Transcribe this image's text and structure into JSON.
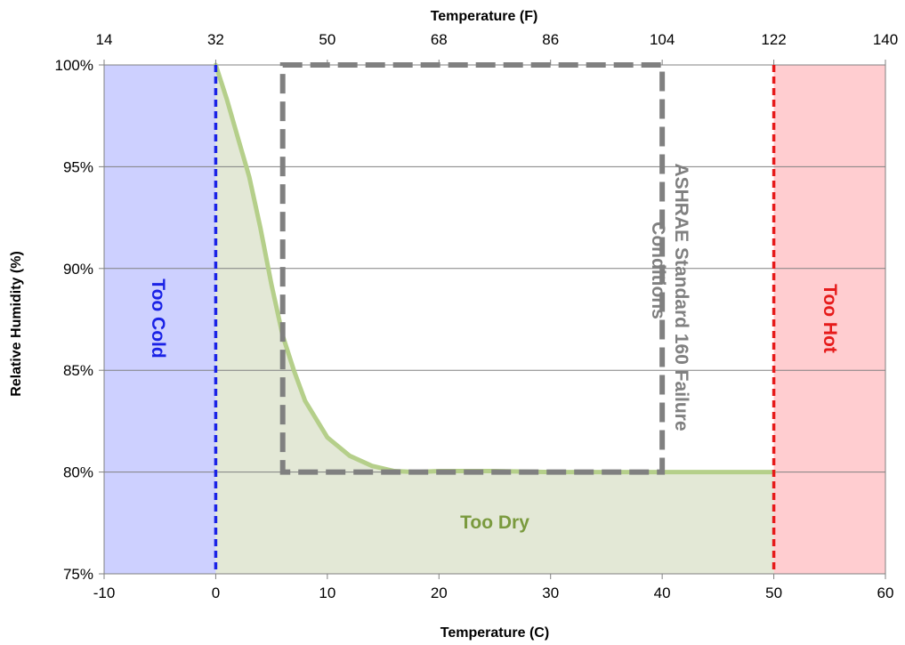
{
  "chart_data": {
    "type": "area",
    "x_axis": {
      "label": "Temperature (C)",
      "range": [
        -10,
        60
      ],
      "ticks": [
        -10,
        0,
        10,
        20,
        30,
        40,
        50,
        60
      ]
    },
    "x2_axis": {
      "label": "Temperature (F)",
      "ticks": [
        14,
        32,
        50,
        68,
        86,
        104,
        122,
        140
      ]
    },
    "y_axis": {
      "label": "Relative Humidity (%)",
      "range": [
        75,
        100
      ],
      "ticks": [
        "75%",
        "80%",
        "85%",
        "90%",
        "95%",
        "100%"
      ]
    },
    "grid": "horizontal",
    "series": [
      {
        "type": "line",
        "color": "#b5cf8a",
        "points": [
          [
            0,
            100
          ],
          [
            1,
            98.3
          ],
          [
            2,
            96.4
          ],
          [
            3,
            94.5
          ],
          [
            4,
            92
          ],
          [
            5,
            89.2
          ],
          [
            6,
            86.7
          ],
          [
            7,
            85
          ],
          [
            8,
            83.5
          ],
          [
            10,
            81.7
          ],
          [
            12,
            80.8
          ],
          [
            14,
            80.3
          ],
          [
            16,
            80.05
          ],
          [
            18,
            80
          ],
          [
            20,
            80.05
          ],
          [
            25,
            80.05
          ],
          [
            30,
            80
          ],
          [
            40,
            80
          ],
          [
            50,
            80
          ]
        ]
      }
    ],
    "regions": [
      {
        "label": "Too Cold",
        "x_range": [
          -10,
          0
        ],
        "y_range": [
          75,
          100
        ],
        "fill": "#cdd0ff",
        "boundary_color": "#1a22e6"
      },
      {
        "label": "Too Hot",
        "x_range": [
          50,
          60
        ],
        "y_range": [
          75,
          100
        ],
        "fill": "#ffcdd0",
        "boundary_color": "#e61a1a"
      },
      {
        "label": "Too Dry",
        "below_curve_x_range": [
          0,
          50
        ],
        "fill": "#e3e8d6",
        "label_color": "#7a9a3e"
      }
    ],
    "annotations": [
      {
        "label": "ASHRAE Standard 160 Failure Conditions",
        "x_range": [
          6,
          40
        ],
        "y_range": [
          80,
          100
        ],
        "style": "dashed-box",
        "color": "#808080"
      }
    ]
  },
  "labels": {
    "too_cold": "Too Cold",
    "too_hot": "Too Hot",
    "too_dry": "Too Dry",
    "ashrae_line1": "ASHRAE Standard 160 Failure",
    "ashrae_line2": "Conditions"
  }
}
